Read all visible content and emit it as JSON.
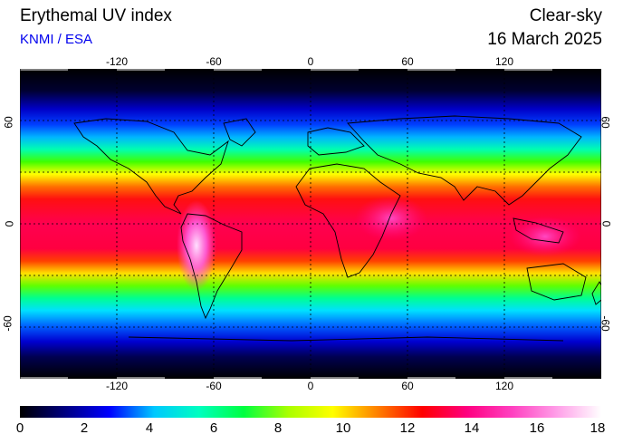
{
  "header": {
    "title": "Erythemal UV index",
    "credit": "KNMI / ESA",
    "condition": "Clear-sky",
    "date": "16 March 2025"
  },
  "axes": {
    "lon_ticks": [
      "-120",
      "-60",
      "0",
      "60",
      "120"
    ],
    "lat_ticks": [
      "60",
      "0",
      "-60"
    ]
  },
  "colorbar": {
    "labels": [
      "0",
      "2",
      "4",
      "6",
      "8",
      "10",
      "12",
      "14",
      "16",
      "18"
    ],
    "min": 0,
    "max": 18,
    "colors": [
      "#000000",
      "#000080",
      "#0000ff",
      "#00c8ff",
      "#00ffc0",
      "#00ff40",
      "#aaff00",
      "#ffff00",
      "#ff8000",
      "#ff0000",
      "#ff0080",
      "#ff40c0",
      "#ff9ee8",
      "#ffffff"
    ]
  },
  "map": {
    "projection": "equirectangular",
    "lon_range": [
      -180,
      180
    ],
    "lat_range": [
      -90,
      90
    ],
    "gridlines": "dashed every 30 degrees"
  }
}
